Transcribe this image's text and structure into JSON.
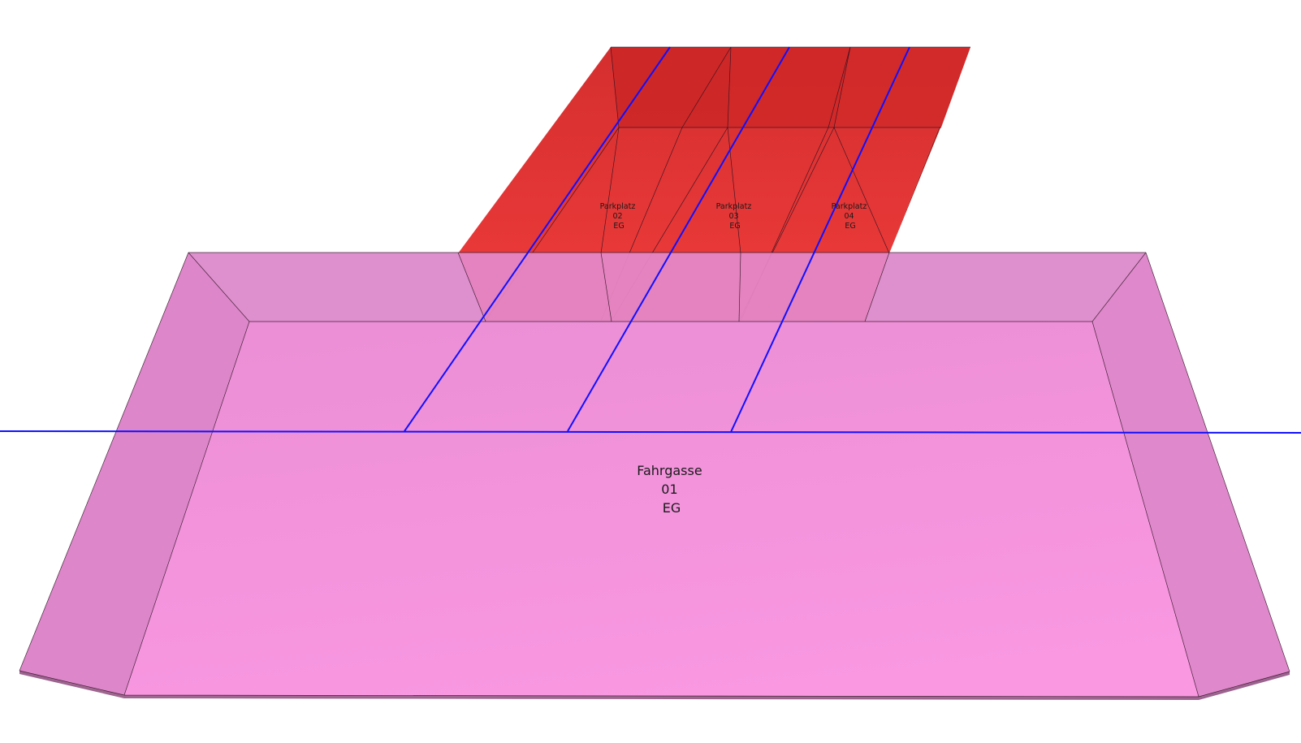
{
  "scene": {
    "parking_spaces": [
      {
        "id": "parkplatz-02",
        "lines": [
          "Parkplatz",
          "02",
          "EG"
        ]
      },
      {
        "id": "parkplatz-03",
        "lines": [
          "Parkplatz",
          "03",
          "EG"
        ]
      },
      {
        "id": "parkplatz-04",
        "lines": [
          "Parkplatz",
          "04",
          "EG"
        ]
      }
    ],
    "driveway": {
      "id": "fahrgasse-01",
      "lines": [
        "Fahrgasse",
        "01",
        "EG"
      ]
    }
  },
  "colors": {
    "parking_fill": "#e02020",
    "driveway_fill": "#f39add",
    "driveway_side": "#d983c6",
    "driveway_bottom": "#9c6390",
    "grid_line": "#1010ff",
    "edge_line": "#2a1020"
  }
}
